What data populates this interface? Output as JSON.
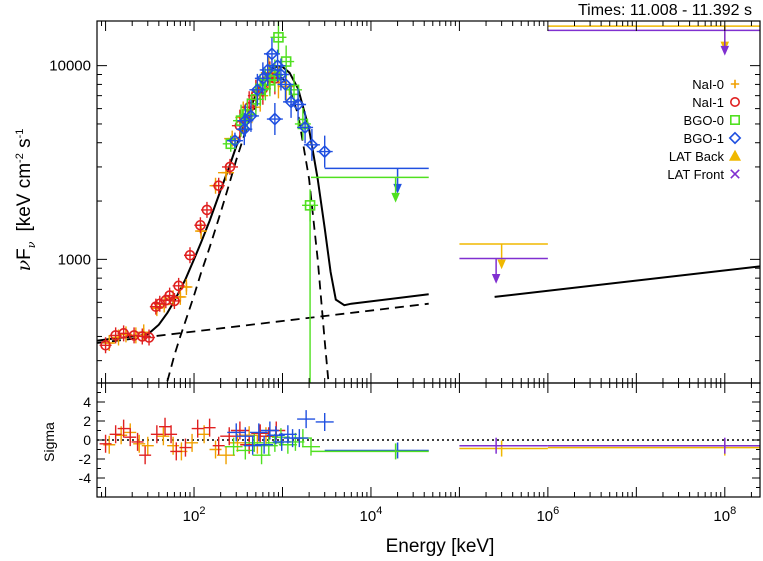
{
  "chart_data": [
    {
      "type": "scatter",
      "panel": "spectrum",
      "title": "Times: 11.008 - 11.392 s",
      "ylabel": "νFν [keV cm-2 s-1]",
      "ylabel_parts": {
        "nu": "ν",
        "F": "F",
        "nu_sub": "ν",
        "bracket_open": "[keV cm",
        "exp1": "-2",
        "s": " s",
        "exp2": "-1",
        "bracket_close": "]"
      },
      "xscale": "log",
      "yscale": "log",
      "xlim": [
        8,
        250000000
      ],
      "ylim": [
        230,
        17000
      ],
      "y_ticks": [
        {
          "value": 1000,
          "label": "1000"
        },
        {
          "value": 10000,
          "label": "10000"
        }
      ],
      "legend": {
        "placement": "top-right",
        "entries": [
          {
            "label": "NaI-0",
            "marker": "plus",
            "color": "#f0a000"
          },
          {
            "label": "NaI-1",
            "marker": "circle",
            "color": "#e02020"
          },
          {
            "label": "BGO-0",
            "marker": "square",
            "color": "#50e020"
          },
          {
            "label": "BGO-1",
            "marker": "diamond",
            "color": "#2050e0"
          },
          {
            "label": "LAT Back",
            "marker": "triangle",
            "color": "#f0b800"
          },
          {
            "label": "LAT Front",
            "marker": "cross",
            "color": "#8030d0"
          }
        ]
      },
      "model_curves": [
        {
          "name": "total",
          "style": "solid",
          "x": [
            8,
            12,
            16,
            20,
            25,
            30,
            40,
            50,
            60,
            70,
            80,
            100,
            120,
            150,
            200,
            250,
            300,
            400,
            500,
            600,
            700,
            800,
            900,
            1000,
            1200,
            1500,
            2000,
            2500,
            3000,
            3500,
            4000,
            5000,
            6000,
            45000
          ],
          "y": [
            380,
            390,
            395,
            400,
            405,
            410,
            460,
            530,
            610,
            700,
            790,
            1000,
            1220,
            1580,
            2280,
            3000,
            3820,
            5500,
            7100,
            8400,
            9300,
            9800,
            9900,
            9850,
            9200,
            7600,
            4700,
            2600,
            1450,
            860,
            620,
            580,
            590,
            660
          ]
        },
        {
          "name": "total",
          "style": "solid",
          "x": [
            250000,
            250000000
          ],
          "y": [
            640,
            920
          ]
        },
        {
          "name": "band",
          "style": "dashed",
          "x": [
            50,
            60,
            70,
            80,
            100,
            120,
            150,
            200,
            250,
            300,
            400,
            500,
            600,
            700,
            800,
            900,
            1000,
            1200,
            1500,
            2000,
            2500,
            3000,
            3300
          ],
          "y": [
            235,
            320,
            400,
            480,
            650,
            850,
            1150,
            1750,
            2450,
            3250,
            4900,
            6300,
            7500,
            8300,
            8700,
            8800,
            8600,
            7600,
            5600,
            2600,
            1000,
            380,
            235
          ]
        },
        {
          "name": "power law",
          "style": "dashed",
          "x": [
            8,
            45000
          ],
          "y": [
            370,
            590
          ]
        }
      ],
      "series": [
        {
          "name": "NaI-0",
          "color": "#f0a000",
          "marker": "plus",
          "points": [
            [
              11,
              370
            ],
            [
              14,
              395
            ],
            [
              17,
              410
            ],
            [
              22,
              405
            ],
            [
              27,
              420
            ],
            [
              38,
              560
            ],
            [
              46,
              585
            ],
            [
              58,
              630
            ],
            [
              70,
              640
            ],
            [
              82,
              720
            ],
            [
              120,
              1400
            ],
            [
              175,
              2400
            ],
            [
              230,
              2800
            ],
            [
              270,
              4200
            ],
            [
              360,
              5400
            ],
            [
              450,
              6100
            ],
            [
              560,
              7000
            ],
            [
              700,
              9200
            ],
            [
              900,
              8200
            ],
            [
              1100,
              7800
            ]
          ]
        },
        {
          "name": "NaI-1",
          "color": "#e02020",
          "marker": "circle",
          "points": [
            [
              10,
              360
            ],
            [
              13,
              405
            ],
            [
              16,
              415
            ],
            [
              21,
              405
            ],
            [
              26,
              400
            ],
            [
              31,
              395
            ],
            [
              37,
              570
            ],
            [
              41,
              590
            ],
            [
              48,
              615
            ],
            [
              53,
              650
            ],
            [
              60,
              610
            ],
            [
              67,
              730
            ],
            [
              90,
              1050
            ],
            [
              118,
              1500
            ],
            [
              140,
              1800
            ],
            [
              190,
              2400
            ],
            [
              255,
              3000
            ],
            [
              330,
              4900
            ],
            [
              420,
              6100
            ],
            [
              500,
              7000
            ],
            [
              600,
              7600
            ],
            [
              720,
              8700
            ],
            [
              820,
              8600
            ]
          ]
        },
        {
          "name": "BGO-0",
          "color": "#50e020",
          "marker": "square",
          "points": [
            [
              260,
              3950
            ],
            [
              340,
              5200
            ],
            [
              400,
              5600
            ],
            [
              500,
              6700
            ],
            [
              560,
              7500
            ],
            [
              640,
              8000
            ],
            [
              720,
              8400
            ],
            [
              820,
              8900
            ],
            [
              900,
              14000
            ],
            [
              1100,
              10500
            ],
            [
              1350,
              7500
            ],
            [
              1700,
              5000
            ],
            [
              2050,
              1900
            ]
          ]
        },
        {
          "name": "BGO-1",
          "color": "#2050e0",
          "marker": "diamond",
          "points": [
            [
              290,
              4100
            ],
            [
              370,
              4700
            ],
            [
              440,
              5500
            ],
            [
              520,
              7500
            ],
            [
              600,
              8600
            ],
            [
              680,
              9500
            ],
            [
              760,
              11500
            ],
            [
              880,
              10000
            ],
            [
              960,
              9000
            ],
            [
              1080,
              8000
            ],
            [
              1250,
              6500
            ],
            [
              1500,
              6300
            ],
            [
              1800,
              4800
            ],
            [
              2150,
              3900
            ],
            [
              3000,
              3600
            ],
            [
              380,
              5200
            ],
            [
              820,
              5300
            ]
          ]
        }
      ],
      "upper_limits": [
        {
          "name": "BGO-1",
          "color": "#2050e0",
          "x_range": [
            3000,
            45000
          ],
          "y": 2950,
          "x": 20000
        },
        {
          "name": "BGO-0",
          "color": "#50e020",
          "x_range": [
            2100,
            45000
          ],
          "y": 2650,
          "x": 19000
        },
        {
          "name": "LAT Back",
          "color": "#f0b800",
          "x_range": [
            100000,
            1000000
          ],
          "y": 1200,
          "x": 300000
        },
        {
          "name": "LAT Front",
          "color": "#8030d0",
          "x_range": [
            100000,
            1000000
          ],
          "y": 1010,
          "x": 260000
        },
        {
          "name": "LAT Back",
          "color": "#f0b800",
          "x_range": [
            1000000,
            250000000
          ],
          "y": 16000,
          "x": 100000000
        },
        {
          "name": "LAT Front",
          "color": "#8030d0",
          "x_range": [
            1000000,
            250000000
          ],
          "y": 15200,
          "x": 100000000
        }
      ]
    },
    {
      "type": "scatter",
      "panel": "residuals",
      "xlabel": "Energy [keV]",
      "ylabel": "Sigma",
      "xscale": "log",
      "xlim": [
        8,
        250000000
      ],
      "ylim": [
        -6,
        6
      ],
      "y_ticks": [
        {
          "value": 4,
          "label": "4"
        },
        {
          "value": 2,
          "label": "2"
        },
        {
          "value": 0,
          "label": "0"
        },
        {
          "value": -2,
          "label": "-2"
        },
        {
          "value": -4,
          "label": "-4"
        }
      ],
      "x_ticks": [
        {
          "value": 100,
          "base": "10",
          "exp": "2"
        },
        {
          "value": 10000,
          "base": "10",
          "exp": "4"
        },
        {
          "value": 1000000,
          "base": "10",
          "exp": "6"
        },
        {
          "value": 100000000,
          "base": "10",
          "exp": "8"
        }
      ],
      "zero_line": "dotted",
      "series": [
        {
          "name": "NaI-0",
          "color": "#f0a000",
          "points": [
            [
              11,
              -0.5
            ],
            [
              15,
              0.5
            ],
            [
              19,
              0.8
            ],
            [
              24,
              -0.4
            ],
            [
              30,
              -0.6
            ],
            [
              45,
              0.4
            ],
            [
              58,
              -0.6
            ],
            [
              72,
              -1.2
            ],
            [
              95,
              -0.3
            ],
            [
              130,
              0.6
            ],
            [
              175,
              -1.0
            ],
            [
              230,
              -1.6
            ],
            [
              310,
              -0.3
            ],
            [
              420,
              0.5
            ],
            [
              520,
              -0.5
            ],
            [
              650,
              0.4
            ]
          ]
        },
        {
          "name": "NaI-1",
          "color": "#e02020",
          "points": [
            [
              10,
              -0.4
            ],
            [
              13,
              0.6
            ],
            [
              16,
              1.2
            ],
            [
              19,
              0.3
            ],
            [
              23,
              -0.2
            ],
            [
              28,
              -1.6
            ],
            [
              38,
              0.6
            ],
            [
              47,
              1.4
            ],
            [
              55,
              0.6
            ],
            [
              63,
              -1.2
            ],
            [
              80,
              -0.8
            ],
            [
              110,
              1.2
            ],
            [
              150,
              1.3
            ],
            [
              190,
              -0.6
            ],
            [
              250,
              0.4
            ],
            [
              330,
              1.0
            ],
            [
              420,
              -0.5
            ],
            [
              560,
              0.7
            ],
            [
              700,
              0.4
            ],
            [
              850,
              1.0
            ]
          ]
        },
        {
          "name": "BGO-0",
          "color": "#50e020",
          "points": [
            [
              280,
              -0.7
            ],
            [
              380,
              -1.1
            ],
            [
              480,
              -0.3
            ],
            [
              580,
              -1.6
            ],
            [
              700,
              -0.6
            ],
            [
              820,
              -0.3
            ],
            [
              960,
              0.3
            ],
            [
              1150,
              -0.5
            ],
            [
              1400,
              -0.2
            ],
            [
              1700,
              0.2
            ],
            [
              2100,
              -0.7
            ]
          ]
        },
        {
          "name": "BGO-1",
          "color": "#2050e0",
          "points": [
            [
              300,
              0.8
            ],
            [
              380,
              0.4
            ],
            [
              460,
              -0.6
            ],
            [
              540,
              0.8
            ],
            [
              620,
              -0.5
            ],
            [
              720,
              1.0
            ],
            [
              840,
              0.5
            ],
            [
              980,
              -0.2
            ],
            [
              1150,
              0.6
            ],
            [
              1300,
              0.2
            ],
            [
              1550,
              0.2
            ],
            [
              1850,
              2.2
            ],
            [
              3000,
              1.9
            ]
          ]
        }
      ],
      "limit_segments": [
        {
          "color": "#2050e0",
          "x_range": [
            3000,
            45000
          ],
          "y": -1.1,
          "x": 20000
        },
        {
          "color": "#50e020",
          "x_range": [
            2100,
            45000
          ],
          "y": -1.2,
          "x": 19000
        },
        {
          "color": "#f0b800",
          "x_range": [
            100000,
            1000000
          ],
          "y": -0.9,
          "x": 300000
        },
        {
          "color": "#8030d0",
          "x_range": [
            100000,
            1000000
          ],
          "y": -0.6,
          "x": 260000
        },
        {
          "color": "#f0b800",
          "x_range": [
            1000000,
            250000000
          ],
          "y": -0.8,
          "x": 100000000
        },
        {
          "color": "#8030d0",
          "x_range": [
            1000000,
            250000000
          ],
          "y": -0.6,
          "x": 100000000
        }
      ]
    }
  ]
}
